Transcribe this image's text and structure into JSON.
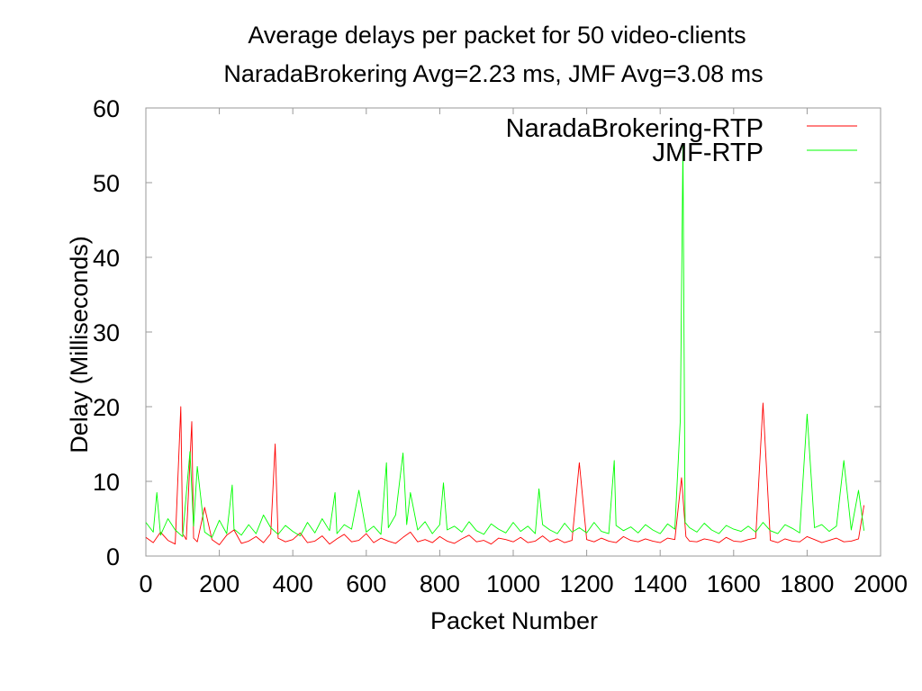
{
  "chart_data": {
    "type": "line",
    "title": "Average delays per packet for 50 video-clients",
    "subtitle": "NaradaBrokering Avg=2.23 ms, JMF Avg=3.08 ms",
    "xlabel": "Packet Number",
    "ylabel": "Delay (Milliseconds)",
    "xlim": [
      0,
      2000
    ],
    "ylim": [
      0,
      60
    ],
    "x_ticks": [
      "0",
      "200",
      "400",
      "600",
      "800",
      "1000",
      "1200",
      "1400",
      "1600",
      "1800",
      "2000"
    ],
    "y_ticks": [
      "0",
      "10",
      "20",
      "30",
      "40",
      "50",
      "60"
    ],
    "grid": false,
    "legend_position": "top-right",
    "series": [
      {
        "name": "NaradaBrokering-RTP",
        "color": "#ff0000",
        "x": [
          0,
          20,
          40,
          60,
          80,
          95,
          100,
          110,
          125,
          130,
          140,
          160,
          180,
          200,
          220,
          240,
          260,
          280,
          300,
          320,
          340,
          352,
          360,
          380,
          400,
          420,
          440,
          460,
          480,
          500,
          520,
          540,
          560,
          580,
          600,
          620,
          640,
          660,
          680,
          700,
          720,
          740,
          760,
          780,
          800,
          820,
          840,
          860,
          880,
          900,
          920,
          940,
          960,
          980,
          1000,
          1020,
          1040,
          1060,
          1080,
          1100,
          1120,
          1140,
          1160,
          1180,
          1200,
          1220,
          1240,
          1260,
          1280,
          1300,
          1320,
          1340,
          1360,
          1380,
          1400,
          1420,
          1440,
          1458,
          1470,
          1480,
          1500,
          1520,
          1540,
          1560,
          1580,
          1600,
          1620,
          1640,
          1660,
          1680,
          1700,
          1720,
          1740,
          1760,
          1780,
          1800,
          1820,
          1840,
          1860,
          1880,
          1900,
          1920,
          1940,
          1955
        ],
        "values": [
          2.5,
          1.8,
          3.2,
          2.1,
          1.6,
          20,
          3.0,
          2.2,
          18,
          2.4,
          1.9,
          6.5,
          2.2,
          1.5,
          2.8,
          3.5,
          1.7,
          2.0,
          2.6,
          1.8,
          3.0,
          15,
          2.4,
          1.9,
          2.2,
          3.1,
          1.8,
          2.0,
          2.7,
          1.6,
          2.3,
          2.9,
          1.9,
          2.1,
          3.0,
          1.8,
          2.4,
          2.0,
          1.7,
          2.5,
          3.2,
          1.9,
          2.2,
          1.8,
          2.6,
          2.0,
          1.7,
          2.3,
          2.8,
          1.9,
          2.1,
          1.6,
          2.4,
          2.2,
          1.9,
          2.5,
          1.8,
          2.0,
          2.7,
          1.9,
          2.3,
          1.8,
          2.1,
          12.5,
          2.2,
          1.9,
          2.4,
          2.0,
          1.8,
          2.6,
          2.1,
          1.9,
          2.3,
          2.0,
          1.8,
          2.4,
          2.2,
          10.5,
          2.6,
          2.0,
          1.9,
          2.3,
          2.1,
          1.8,
          2.5,
          2.0,
          1.9,
          2.2,
          2.4,
          20.5,
          2.1,
          1.8,
          2.3,
          2.0,
          1.9,
          2.6,
          2.2,
          1.8,
          2.1,
          2.4,
          1.9,
          2.0,
          2.3,
          6.8
        ]
      },
      {
        "name": "JMF-RTP",
        "color": "#00ff00",
        "x": [
          0,
          20,
          30,
          40,
          60,
          80,
          100,
          120,
          130,
          140,
          160,
          180,
          200,
          220,
          235,
          240,
          260,
          280,
          300,
          320,
          340,
          360,
          380,
          400,
          420,
          440,
          460,
          480,
          500,
          515,
          520,
          540,
          560,
          580,
          600,
          620,
          640,
          655,
          660,
          680,
          700,
          710,
          720,
          740,
          760,
          780,
          800,
          810,
          820,
          840,
          860,
          880,
          900,
          920,
          940,
          960,
          980,
          1000,
          1020,
          1040,
          1060,
          1070,
          1080,
          1100,
          1120,
          1140,
          1160,
          1180,
          1200,
          1220,
          1240,
          1260,
          1275,
          1280,
          1300,
          1320,
          1340,
          1360,
          1380,
          1400,
          1420,
          1440,
          1455,
          1462,
          1468,
          1480,
          1500,
          1520,
          1540,
          1560,
          1580,
          1600,
          1620,
          1640,
          1660,
          1680,
          1700,
          1720,
          1740,
          1760,
          1780,
          1800,
          1820,
          1840,
          1860,
          1880,
          1900,
          1920,
          1940,
          1955
        ],
        "values": [
          4.5,
          3.2,
          8.5,
          2.8,
          5.0,
          3.5,
          2.6,
          14,
          4.0,
          12,
          3.2,
          2.5,
          4.8,
          3.0,
          9.5,
          3.6,
          2.8,
          4.2,
          3.0,
          5.5,
          3.8,
          2.9,
          4.1,
          3.3,
          2.7,
          4.5,
          3.1,
          5.0,
          3.4,
          8.5,
          3.0,
          4.2,
          3.6,
          8.8,
          3.2,
          4.0,
          2.9,
          12.5,
          3.8,
          5.5,
          13.8,
          4.2,
          8.5,
          3.5,
          4.6,
          3.0,
          4.2,
          9.8,
          3.5,
          4.0,
          3.2,
          4.6,
          3.4,
          2.9,
          4.3,
          3.6,
          3.1,
          4.5,
          3.3,
          4.0,
          3.0,
          9.0,
          4.2,
          3.5,
          3.0,
          4.4,
          3.2,
          3.8,
          3.1,
          4.5,
          3.3,
          3.0,
          12.8,
          4.1,
          3.4,
          3.9,
          3.1,
          4.2,
          3.5,
          3.0,
          4.3,
          3.6,
          18.3,
          55,
          4.5,
          3.8,
          3.2,
          4.4,
          3.5,
          3.0,
          4.1,
          3.6,
          3.3,
          4.0,
          3.2,
          4.5,
          3.4,
          3.0,
          4.2,
          3.7,
          3.1,
          19,
          3.8,
          4.2,
          3.3,
          4.0,
          12.8,
          3.5,
          8.8,
          3.4
        ]
      }
    ]
  }
}
